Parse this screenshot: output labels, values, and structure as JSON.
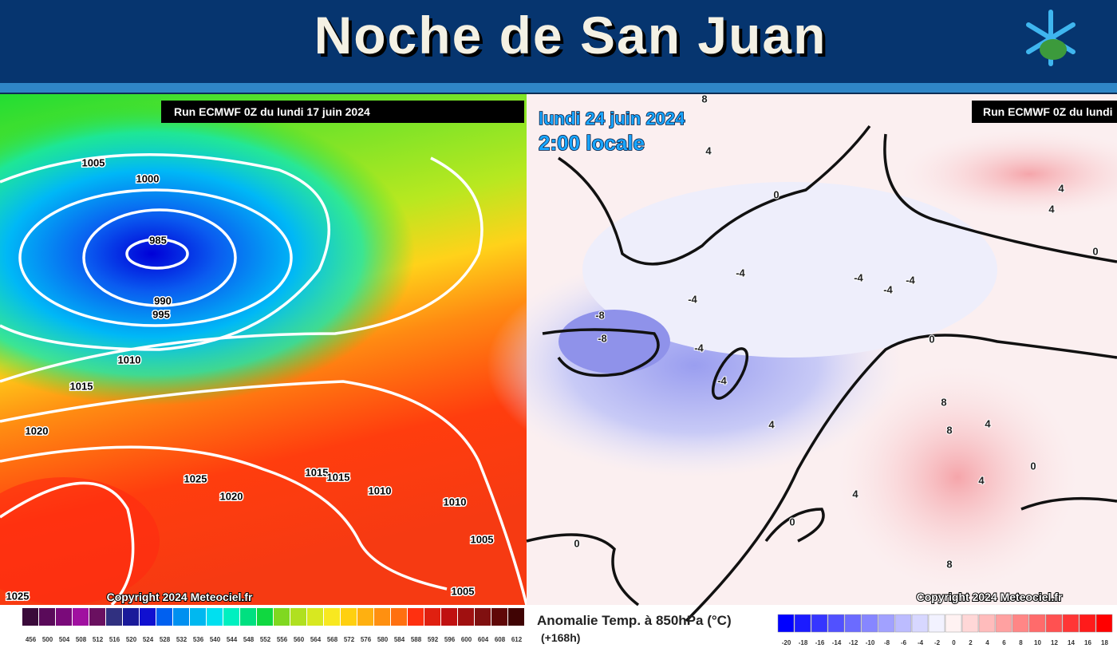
{
  "header": {
    "title": "Noche de San Juan"
  },
  "left_map": {
    "run_label": "Run ECMWF 0Z du lundi 17 juin 2024",
    "copyright": "Copyright 2024 Meteociel.fr",
    "isobar_labels": [
      1005,
      1000,
      985,
      990,
      995,
      1010,
      1015,
      1020,
      1025,
      1020,
      1015,
      1015,
      1010,
      1010,
      1005,
      1005,
      1025
    ],
    "colorbar_labels": [
      456,
      500,
      504,
      508,
      512,
      516,
      520,
      524,
      528,
      532,
      536,
      540,
      544,
      548,
      552,
      556,
      560,
      564,
      568,
      572,
      576,
      580,
      584,
      588,
      592,
      596,
      600,
      604,
      608,
      612
    ]
  },
  "right_map": {
    "date": "lundi 24 juin 2024",
    "time": "2:00 locale",
    "run_label": "Run ECMWF 0Z du lundi",
    "copyright": "Copyright 2024 Meteociel.fr",
    "legend_title": "Anomalie Temp. à 850hPa (°C)",
    "lead": "(+168h)",
    "contour_labels": [
      8,
      4,
      0,
      4,
      4,
      0,
      -4,
      -4,
      -4,
      -4,
      -4,
      -8,
      -8,
      -4,
      -4,
      0,
      4,
      8,
      8,
      4,
      0,
      4,
      4,
      0,
      0,
      8
    ],
    "colorbar_labels": [
      -20,
      -18,
      -16,
      -14,
      -12,
      -10,
      -8,
      -6,
      -4,
      -2,
      0,
      2,
      4,
      6,
      8,
      10,
      12,
      14,
      16,
      18
    ]
  }
}
